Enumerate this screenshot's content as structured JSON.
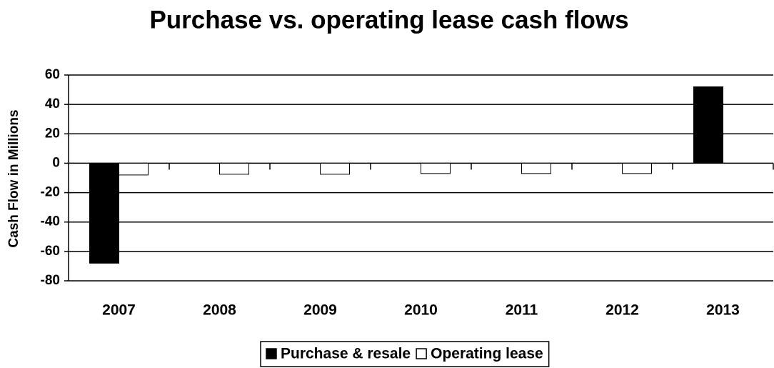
{
  "chart_data": {
    "type": "bar",
    "title": "Purchase vs. operating lease cash flows",
    "y_label": "Cash Flow in Millions",
    "categories": [
      "2007",
      "2008",
      "2009",
      "2010",
      "2011",
      "2012",
      "2013"
    ],
    "series": [
      {
        "name": "Purchase & resale",
        "color": "#000000",
        "values": [
          -68,
          0,
          0,
          0,
          0,
          0,
          52
        ]
      },
      {
        "name": "Operating lease",
        "color": "#ffffff",
        "values": [
          -8,
          -7.5,
          -7.5,
          -7,
          -7,
          -7,
          0
        ]
      }
    ],
    "ylim": [
      -80,
      60
    ],
    "yticks": [
      -80,
      -60,
      -40,
      -20,
      0,
      20,
      40,
      60
    ],
    "grid": true,
    "legend": "bottom"
  }
}
